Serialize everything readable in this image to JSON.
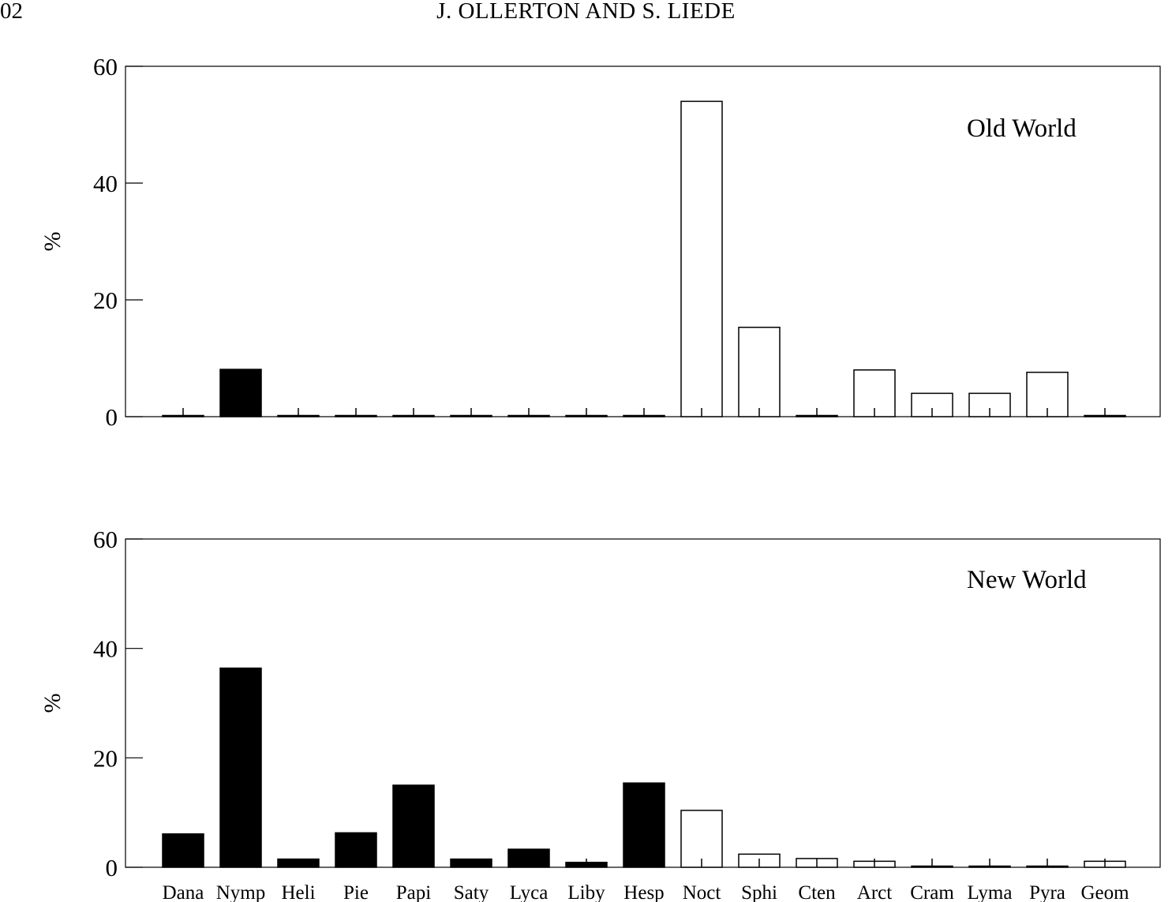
{
  "header": {
    "page_number": "02",
    "running_head": "J. OLLERTON AND S. LIEDE"
  },
  "chart_data": [
    {
      "type": "bar",
      "title": "Old World",
      "ylabel": "%",
      "ylim": [
        0,
        60
      ],
      "yticks": [
        0,
        20,
        40,
        60
      ],
      "categories": [
        "Dana",
        "Nymp",
        "Heli",
        "Pie",
        "Papi",
        "Saty",
        "Lyca",
        "Liby",
        "Hesp",
        "Noct",
        "Sphi",
        "Cten",
        "Arct",
        "Cram",
        "Lyma",
        "Pyra",
        "Geom"
      ],
      "values": [
        0.2,
        8.1,
        0.2,
        0.2,
        0.2,
        0.2,
        0.2,
        0.2,
        0.2,
        54.0,
        15.3,
        0.2,
        8.0,
        4.0,
        4.0,
        7.6,
        0.2
      ],
      "bar_fill": [
        "#000000",
        "#000000",
        "#000000",
        "#000000",
        "#000000",
        "#000000",
        "#000000",
        "#000000",
        "#000000",
        "#ffffff",
        "#ffffff",
        "#ffffff",
        "#ffffff",
        "#ffffff",
        "#ffffff",
        "#ffffff",
        "#ffffff"
      ],
      "show_xticklabels": false,
      "grid": false
    },
    {
      "type": "bar",
      "title": "New World",
      "ylabel": "%",
      "ylim": [
        0,
        60
      ],
      "yticks": [
        0,
        20,
        40,
        60
      ],
      "categories": [
        "Dana",
        "Nymp",
        "Heli",
        "Pie",
        "Papi",
        "Saty",
        "Lyca",
        "Liby",
        "Hesp",
        "Noct",
        "Sphi",
        "Cten",
        "Arct",
        "Cram",
        "Lyma",
        "Pyra",
        "Geom"
      ],
      "values": [
        6.1,
        36.4,
        1.5,
        6.3,
        15.0,
        1.5,
        3.3,
        0.9,
        15.4,
        10.4,
        2.4,
        1.6,
        1.1,
        0.2,
        0.2,
        0.2,
        1.1
      ],
      "bar_fill": [
        "#000000",
        "#000000",
        "#000000",
        "#000000",
        "#000000",
        "#000000",
        "#000000",
        "#000000",
        "#000000",
        "#ffffff",
        "#ffffff",
        "#ffffff",
        "#ffffff",
        "#ffffff",
        "#ffffff",
        "#ffffff",
        "#ffffff"
      ],
      "show_xticklabels": true,
      "grid": false
    }
  ]
}
